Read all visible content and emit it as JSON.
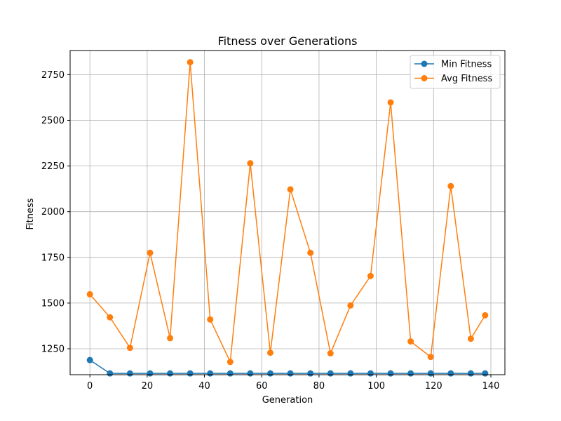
{
  "chart_data": {
    "type": "line",
    "title": "Fitness over Generations",
    "xlabel": "Generation",
    "ylabel": "Fitness",
    "xlim": [
      -6.9,
      144.9
    ],
    "ylim": [
      1108,
      2882
    ],
    "x_ticks": [
      0,
      20,
      40,
      60,
      80,
      100,
      120,
      140
    ],
    "y_ticks": [
      1250,
      1500,
      1750,
      2000,
      2250,
      2500,
      2750
    ],
    "grid": true,
    "legend_position": "top-right",
    "x": [
      0,
      7,
      14,
      21,
      28,
      35,
      42,
      49,
      56,
      63,
      70,
      77,
      84,
      91,
      98,
      105,
      112,
      119,
      126,
      133,
      138
    ],
    "series": [
      {
        "name": "Min Fitness",
        "color": "#1f77b4",
        "values": [
          1188,
          1115,
          1115,
          1115,
          1115,
          1115,
          1115,
          1115,
          1115,
          1115,
          1115,
          1115,
          1115,
          1115,
          1115,
          1115,
          1115,
          1115,
          1115,
          1115,
          1115
        ]
      },
      {
        "name": "Avg Fitness",
        "color": "#ff7f0e",
        "values": [
          1548,
          1422,
          1255,
          1775,
          1308,
          2818,
          1410,
          1178,
          2265,
          1228,
          2122,
          1775,
          1225,
          1487,
          1648,
          2598,
          1290,
          1205,
          2140,
          1305,
          1433
        ]
      }
    ]
  }
}
